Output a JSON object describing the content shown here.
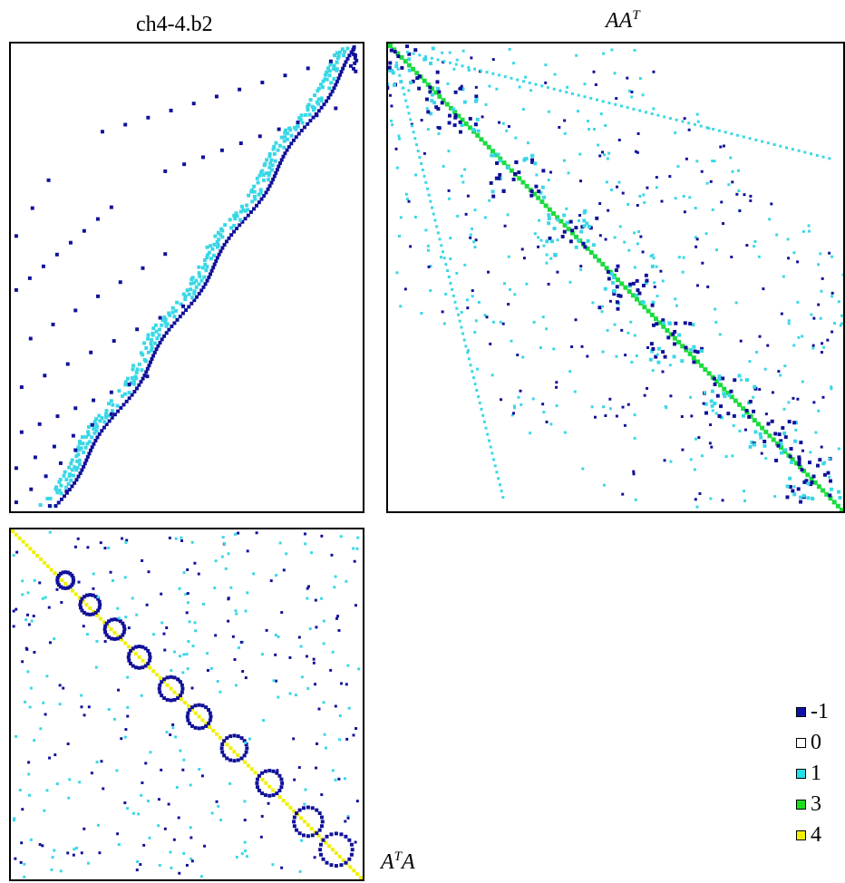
{
  "titles": {
    "panel_a": "ch4-4.b2",
    "panel_b_base": "AA",
    "panel_b_sup": "T",
    "panel_c_base_pre": "A",
    "panel_c_sup": "T",
    "panel_c_base_post": "A"
  },
  "legend": [
    {
      "label": "-1",
      "color": "#1010a8",
      "icon": "square-swatch"
    },
    {
      "label": "0",
      "color": "#ffffff",
      "icon": "square-swatch"
    },
    {
      "label": "1",
      "color": "#22e0e8",
      "icon": "square-swatch"
    },
    {
      "label": "3",
      "color": "#18e018",
      "icon": "square-swatch"
    },
    {
      "label": "4",
      "color": "#f0f000",
      "icon": "square-swatch"
    }
  ],
  "colors": {
    "neg_one": "#10109a",
    "one": "#39d7e6",
    "three": "#18dc3c",
    "four": "#f0f000",
    "border": "#000000"
  }
}
